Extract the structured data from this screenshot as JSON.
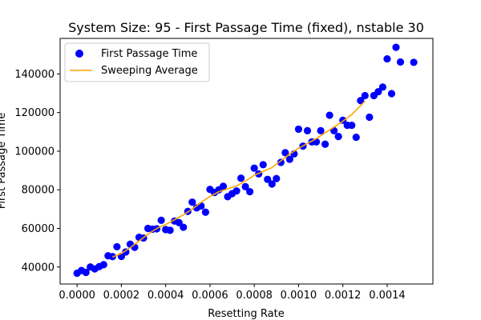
{
  "chart_data": {
    "type": "scatter",
    "title": "System Size: 95 - First Passage Time (fixed), nstable 30",
    "xlabel": "Resetting Rate",
    "ylabel": "First Passage Time",
    "xlim": [
      -7.65e-05,
      0.0016065
    ],
    "ylim": [
      31200,
      158400
    ],
    "xticks": [
      0.0,
      0.0002,
      0.0004,
      0.0006,
      0.0008,
      0.001,
      0.0012,
      0.0014
    ],
    "xtick_labels": [
      "0.0000",
      "0.0002",
      "0.0004",
      "0.0006",
      "0.0008",
      "0.0010",
      "0.0012",
      "0.0014"
    ],
    "yticks": [
      40000,
      60000,
      80000,
      100000,
      120000,
      140000
    ],
    "ytick_labels": [
      "40000",
      "60000",
      "80000",
      "100000",
      "120000",
      "140000"
    ],
    "grid": false,
    "legend_position": "top-left",
    "series": [
      {
        "name": "First Passage Time",
        "kind": "scatter",
        "color": "#0000ff",
        "points": [
          [
            0.0,
            36800
          ],
          [
            2e-05,
            38200
          ],
          [
            4e-05,
            37200
          ],
          [
            6e-05,
            40000
          ],
          [
            8e-05,
            39000
          ],
          [
            0.0001,
            40200
          ],
          [
            0.00012,
            41200
          ],
          [
            0.00014,
            45800
          ],
          [
            0.00016,
            45400
          ],
          [
            0.00018,
            50500
          ],
          [
            0.0002,
            45500
          ],
          [
            0.00022,
            47800
          ],
          [
            0.00024,
            51800
          ],
          [
            0.00026,
            50200
          ],
          [
            0.00028,
            55400
          ],
          [
            0.0003,
            55000
          ],
          [
            0.00032,
            60000
          ],
          [
            0.00034,
            59600
          ],
          [
            0.00036,
            59800
          ],
          [
            0.00038,
            64200
          ],
          [
            0.0004,
            59400
          ],
          [
            0.00042,
            59000
          ],
          [
            0.00044,
            63800
          ],
          [
            0.00046,
            63000
          ],
          [
            0.00048,
            60600
          ],
          [
            0.0005,
            68800
          ],
          [
            0.00052,
            73600
          ],
          [
            0.00054,
            70600
          ],
          [
            0.00056,
            71600
          ],
          [
            0.00058,
            68400
          ],
          [
            0.0006,
            80200
          ],
          [
            0.00062,
            78600
          ],
          [
            0.00064,
            80000
          ],
          [
            0.00066,
            81800
          ],
          [
            0.00068,
            76400
          ],
          [
            0.0007,
            78000
          ],
          [
            0.00072,
            79400
          ],
          [
            0.00074,
            86000
          ],
          [
            0.00076,
            81600
          ],
          [
            0.00078,
            79000
          ],
          [
            0.0008,
            91200
          ],
          [
            0.00082,
            88200
          ],
          [
            0.00084,
            93000
          ],
          [
            0.00086,
            85400
          ],
          [
            0.00088,
            83000
          ],
          [
            0.0009,
            85800
          ],
          [
            0.00092,
            94200
          ],
          [
            0.00094,
            99200
          ],
          [
            0.00096,
            95800
          ],
          [
            0.00098,
            98600
          ],
          [
            0.001,
            111400
          ],
          [
            0.00102,
            102600
          ],
          [
            0.00104,
            110600
          ],
          [
            0.00106,
            104800
          ],
          [
            0.00108,
            104800
          ],
          [
            0.0011,
            110600
          ],
          [
            0.00112,
            103600
          ],
          [
            0.00114,
            118600
          ],
          [
            0.00116,
            110600
          ],
          [
            0.00118,
            107600
          ],
          [
            0.0012,
            116000
          ],
          [
            0.00122,
            113400
          ],
          [
            0.00124,
            113400
          ],
          [
            0.00126,
            107200
          ],
          [
            0.00128,
            126200
          ],
          [
            0.0013,
            128800
          ],
          [
            0.00132,
            117600
          ],
          [
            0.00134,
            128800
          ],
          [
            0.00136,
            130800
          ],
          [
            0.00138,
            133200
          ],
          [
            0.0014,
            147800
          ],
          [
            0.00142,
            129800
          ],
          [
            0.00144,
            153800
          ],
          [
            0.00146,
            146200
          ],
          [
            0.00152,
            146000
          ]
        ]
      },
      {
        "name": "Sweeping Average",
        "kind": "line",
        "color": "#ffa500",
        "points": [
          [
            0.00016,
            45200
          ],
          [
            0.0002,
            47000
          ],
          [
            0.00024,
            50000
          ],
          [
            0.00028,
            53500
          ],
          [
            0.00032,
            57000
          ],
          [
            0.00036,
            60000
          ],
          [
            0.0004,
            62000
          ],
          [
            0.00044,
            64500
          ],
          [
            0.00048,
            67000
          ],
          [
            0.00052,
            70000
          ],
          [
            0.00056,
            73500
          ],
          [
            0.0006,
            76500
          ],
          [
            0.00064,
            79000
          ],
          [
            0.00068,
            80500
          ],
          [
            0.00072,
            82000
          ],
          [
            0.00076,
            84500
          ],
          [
            0.0008,
            87500
          ],
          [
            0.00084,
            89500
          ],
          [
            0.00088,
            91500
          ],
          [
            0.00092,
            95000
          ],
          [
            0.00096,
            98500
          ],
          [
            0.001,
            101500
          ],
          [
            0.00104,
            104000
          ],
          [
            0.00108,
            106500
          ],
          [
            0.00112,
            109500
          ],
          [
            0.00116,
            112500
          ],
          [
            0.0012,
            115500
          ],
          [
            0.00124,
            119000
          ],
          [
            0.00128,
            123500
          ],
          [
            0.0013,
            126000
          ]
        ]
      }
    ]
  }
}
